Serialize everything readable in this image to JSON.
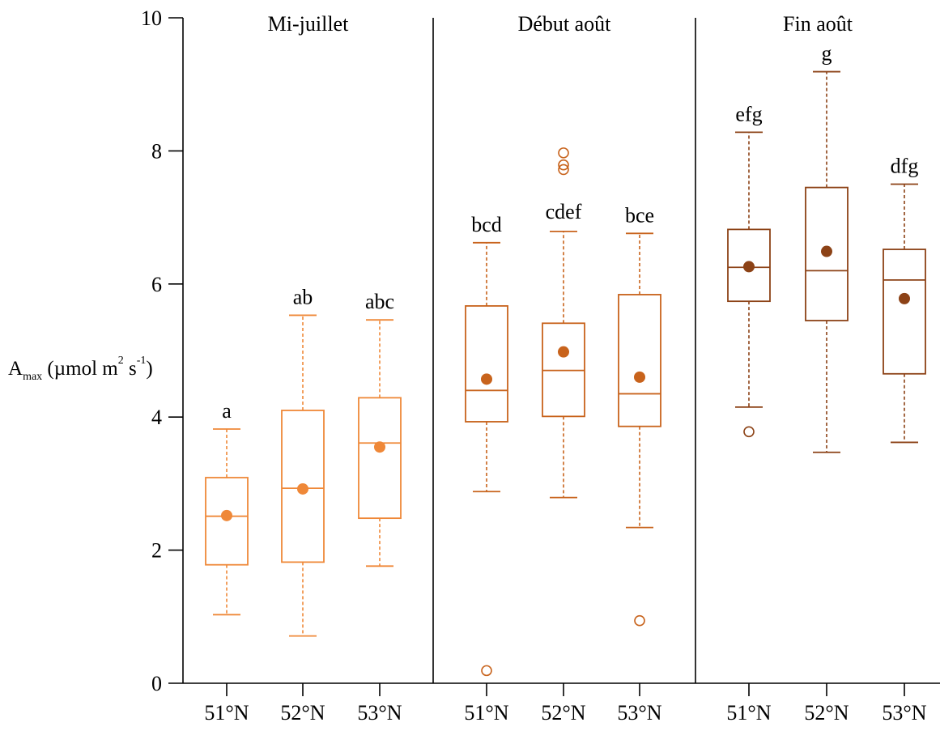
{
  "chart_data": {
    "type": "boxplot",
    "ylabel": {
      "prefix": "A",
      "sub": "max",
      "unit_a": " (µmol m",
      "sup_a": "2",
      "unit_b": " s",
      "sup_b": "-1",
      "close": ")"
    },
    "ylim": [
      0,
      10
    ],
    "yticks": [
      "0",
      "2",
      "4",
      "6",
      "8",
      "10"
    ],
    "grid": false,
    "colors": {
      "Mi-juillet": "#ef8838",
      "Début août": "#c8631c",
      "Fin août": "#8c4216"
    },
    "panels": [
      {
        "title": "Mi-juillet",
        "boxes": [
          {
            "category": "51°N",
            "whisker_low": 1.03,
            "q1": 1.78,
            "median": 2.51,
            "q3": 3.09,
            "whisker_high": 3.82,
            "mean": 2.52,
            "outliers": [],
            "letter": "a"
          },
          {
            "category": "52°N",
            "whisker_low": 0.71,
            "q1": 1.82,
            "median": 2.93,
            "q3": 4.1,
            "whisker_high": 5.53,
            "mean": 2.92,
            "outliers": [],
            "letter": "ab"
          },
          {
            "category": "53°N",
            "whisker_low": 1.76,
            "q1": 2.48,
            "median": 3.61,
            "q3": 4.29,
            "whisker_high": 5.46,
            "mean": 3.55,
            "outliers": [],
            "letter": "abc"
          }
        ]
      },
      {
        "title": "Début août",
        "boxes": [
          {
            "category": "51°N",
            "whisker_low": 2.88,
            "q1": 3.93,
            "median": 4.4,
            "q3": 5.67,
            "whisker_high": 6.62,
            "mean": 4.57,
            "outliers": [
              0.19
            ],
            "letter": "bcd"
          },
          {
            "category": "52°N",
            "whisker_low": 2.79,
            "q1": 4.01,
            "median": 4.7,
            "q3": 5.41,
            "whisker_high": 6.79,
            "mean": 4.98,
            "outliers": [
              7.72,
              7.79,
              7.97
            ],
            "letter": "cdef"
          },
          {
            "category": "53°N",
            "whisker_low": 2.34,
            "q1": 3.86,
            "median": 4.35,
            "q3": 5.84,
            "whisker_high": 6.76,
            "mean": 4.6,
            "outliers": [
              0.94
            ],
            "letter": "bce"
          }
        ]
      },
      {
        "title": "Fin août",
        "boxes": [
          {
            "category": "51°N",
            "whisker_low": 4.15,
            "q1": 5.74,
            "median": 6.25,
            "q3": 6.82,
            "whisker_high": 8.28,
            "mean": 6.26,
            "outliers": [
              3.78
            ],
            "letter": "efg"
          },
          {
            "category": "52°N",
            "whisker_low": 3.47,
            "q1": 5.45,
            "median": 6.2,
            "q3": 7.45,
            "whisker_high": 9.19,
            "mean": 6.49,
            "outliers": [],
            "letter": "g"
          },
          {
            "category": "53°N",
            "whisker_low": 3.62,
            "q1": 4.65,
            "median": 6.06,
            "q3": 6.52,
            "whisker_high": 7.5,
            "mean": 5.78,
            "outliers": [],
            "letter": "dfg"
          }
        ]
      }
    ]
  }
}
